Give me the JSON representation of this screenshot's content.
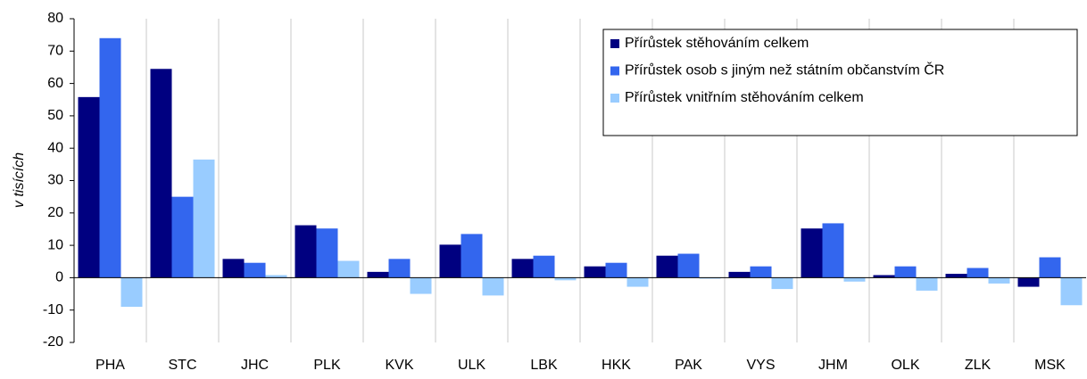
{
  "chart_data": {
    "type": "bar",
    "y_label": "v tisících",
    "categories": [
      "PHA",
      "STC",
      "JHC",
      "PLK",
      "KVK",
      "ULK",
      "LBK",
      "HKK",
      "PAK",
      "VYS",
      "JHM",
      "OLK",
      "ZLK",
      "MSK"
    ],
    "series": [
      {
        "name": "Přírůstek stěhováním celkem",
        "color": "#000080",
        "values": [
          55.8,
          64.5,
          5.8,
          16.2,
          1.8,
          10.2,
          5.8,
          3.5,
          6.8,
          1.8,
          15.2,
          0.8,
          1.2,
          -2.8
        ]
      },
      {
        "name": "Přírůstek osob s jiným než státním občanstvím ČR",
        "color": "#3366ee",
        "values": [
          74,
          25,
          4.6,
          15.2,
          5.8,
          13.5,
          6.8,
          4.6,
          7.4,
          3.5,
          16.8,
          3.5,
          3.0,
          6.3
        ]
      },
      {
        "name": "Přírůstek vnitřním stěhováním celkem",
        "color": "#99ccff",
        "values": [
          -9,
          36.5,
          0.8,
          5.2,
          -5,
          -5.5,
          -0.8,
          -2.8,
          -0.3,
          -3.5,
          -1.2,
          -4,
          -1.8,
          -8.5
        ]
      }
    ],
    "ylim": [
      -20,
      80
    ],
    "yticks": [
      -20,
      -10,
      0,
      10,
      20,
      30,
      40,
      50,
      60,
      70,
      80
    ],
    "legend": "top-right"
  }
}
